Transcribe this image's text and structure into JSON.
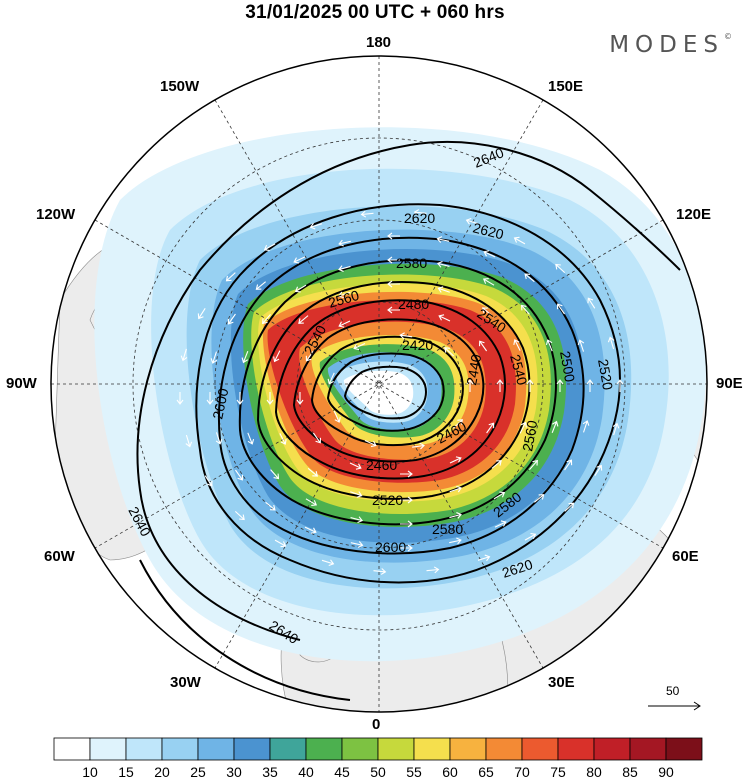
{
  "header": {
    "title": "31/01/2025  00 UTC  + 060 hrs",
    "brand": "MODES",
    "brand_mark": "©"
  },
  "map": {
    "projection": "north-polar-stereographic",
    "longitude_labels": {
      "top": "180",
      "bottom": "0",
      "left": "90W",
      "right": "90E",
      "upper_left": "150W",
      "upper_right": "150E",
      "mid_left_upper": "120W",
      "mid_right_upper": "120E",
      "lower_left": "60W",
      "lower_right": "60E",
      "bottom_left": "30W",
      "bottom_right": "30E"
    },
    "contour_labels": [
      "2640",
      "2640",
      "2640",
      "2620",
      "2620",
      "2620",
      "2600",
      "2600",
      "2580",
      "2580",
      "2580",
      "2560",
      "2560",
      "2540",
      "2540",
      "2520",
      "2520",
      "2500",
      "2480",
      "2460",
      "2460",
      "2440",
      "2420",
      "2540"
    ],
    "wind_reference": "50"
  },
  "colorbar": {
    "labels": [
      "10",
      "15",
      "20",
      "25",
      "30",
      "35",
      "40",
      "45",
      "50",
      "55",
      "60",
      "65",
      "70",
      "75",
      "80",
      "85",
      "90"
    ],
    "colors": [
      "#ffffff",
      "#dff3fc",
      "#bfe6fa",
      "#98d1f2",
      "#6fb4e6",
      "#4b93d0",
      "#3fa59a",
      "#4cb04f",
      "#7dc242",
      "#c6d93c",
      "#f5df4d",
      "#f7b23f",
      "#f38a35",
      "#ec5a2f",
      "#d9312a",
      "#c01f27",
      "#a41723",
      "#7c0f19"
    ]
  }
}
